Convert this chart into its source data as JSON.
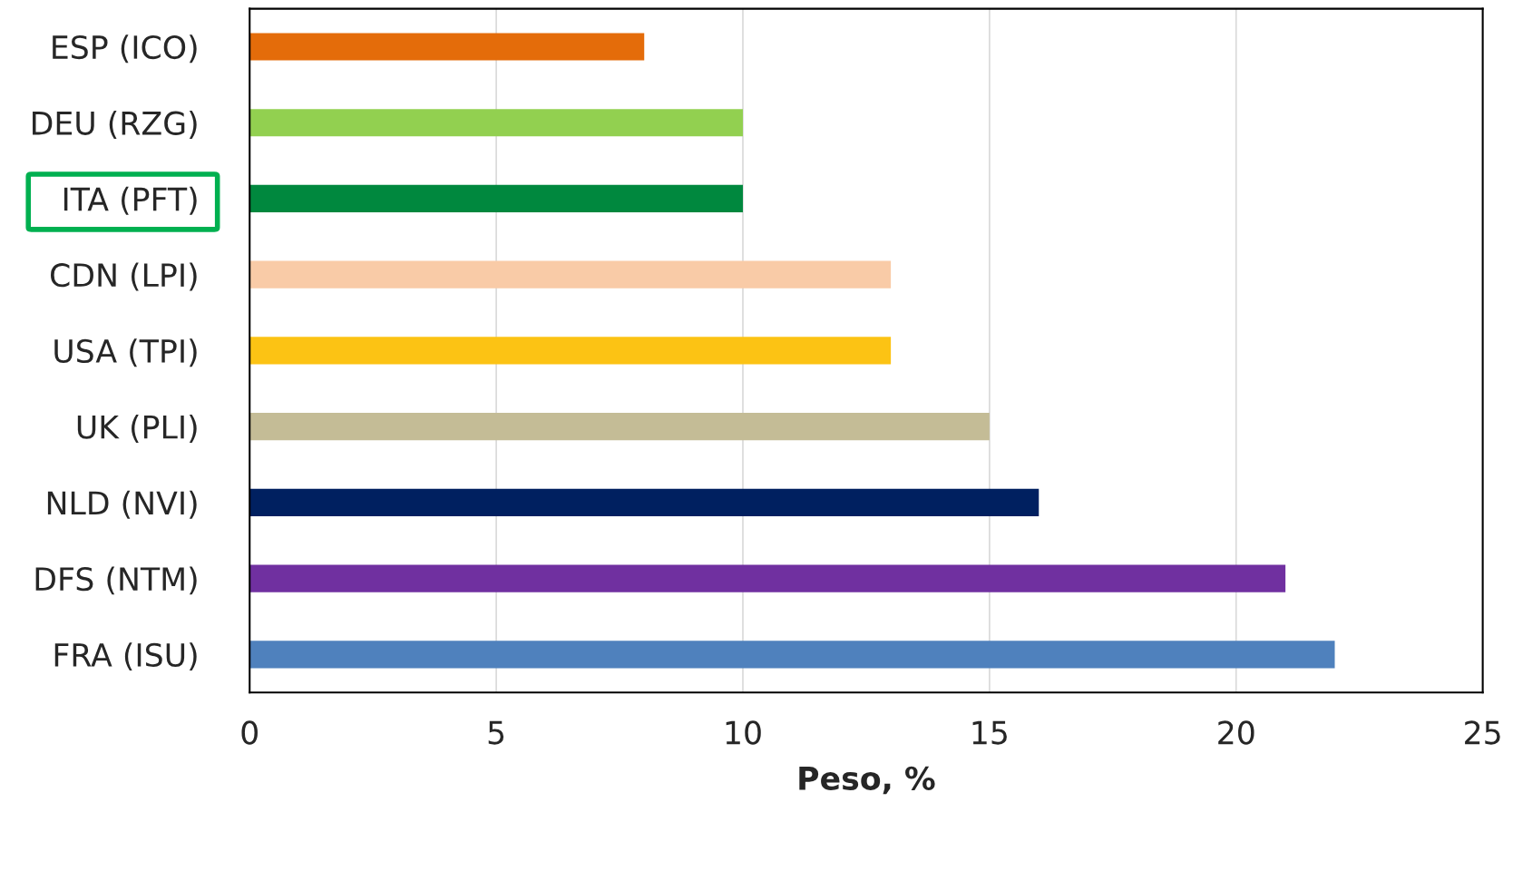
{
  "chart_data": {
    "type": "bar",
    "orientation": "horizontal",
    "xlabel": "Peso, %",
    "categories": [
      "ESP (ICO)",
      "DEU (RZG)",
      "ITA (PFT)",
      "CDN (LPI)",
      "USA (TPI)",
      "UK (PLI)",
      "NLD (NVI)",
      "DFS (NTM)",
      "FRA (ISU)"
    ],
    "values": [
      8,
      10,
      10,
      13,
      13,
      15,
      16,
      21,
      22
    ],
    "colors": [
      "#e46c0a",
      "#92d050",
      "#00883e",
      "#f9cba7",
      "#fcc314",
      "#c4bc96",
      "#002060",
      "#7030a0",
      "#4f81bd"
    ],
    "xlim": [
      0,
      25
    ],
    "xticks": [
      0,
      5,
      10,
      15,
      20,
      25
    ],
    "grid": "x",
    "legend": false
  }
}
